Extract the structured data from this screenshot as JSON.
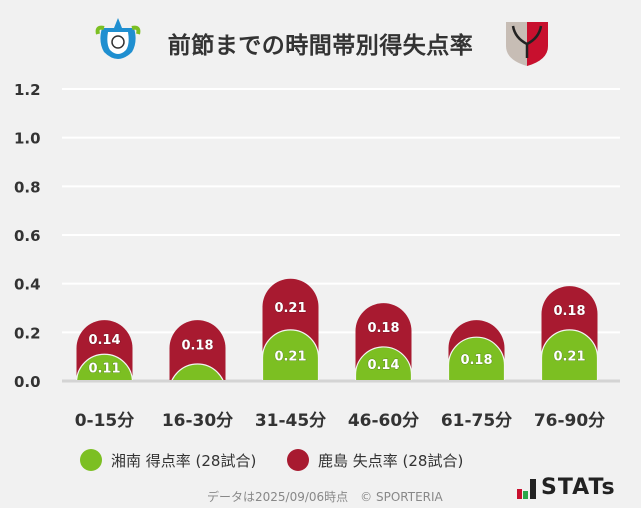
{
  "title": "前節までの時間帯別得失点率",
  "team_left_logo": "shonan-bellmare-emblem",
  "team_right_logo": "kashima-antlers-emblem",
  "chart_data": {
    "type": "bar",
    "title": "前節までの時間帯別得失点率",
    "categories": [
      "0-15分",
      "16-30分",
      "31-45分",
      "46-60分",
      "61-75分",
      "76-90分"
    ],
    "ylim": [
      0,
      1.2
    ],
    "yticks": [
      "0.0",
      "0.2",
      "0.4",
      "0.6",
      "0.8",
      "1.0",
      "1.2"
    ],
    "grid": true,
    "legend_position": "bottom",
    "series": [
      {
        "name": "湘南 得点率 (28試合)",
        "color": "#7cbf22",
        "values": [
          0.11,
          0.07,
          0.21,
          0.14,
          0.18,
          0.21
        ],
        "labels": [
          "0.11",
          "",
          "0.21",
          "0.14",
          "0.18",
          "0.21"
        ]
      },
      {
        "name": "鹿島 失点率 (28試合)",
        "color": "#a81a30",
        "values": [
          0.14,
          0.18,
          0.21,
          0.18,
          0.07,
          0.18
        ],
        "labels": [
          "0.14",
          "0.18",
          "0.21",
          "0.18",
          "",
          "0.18"
        ]
      }
    ]
  },
  "footer": "データは2025/09/06時点　© SPORTERIA",
  "brand": "STATs"
}
